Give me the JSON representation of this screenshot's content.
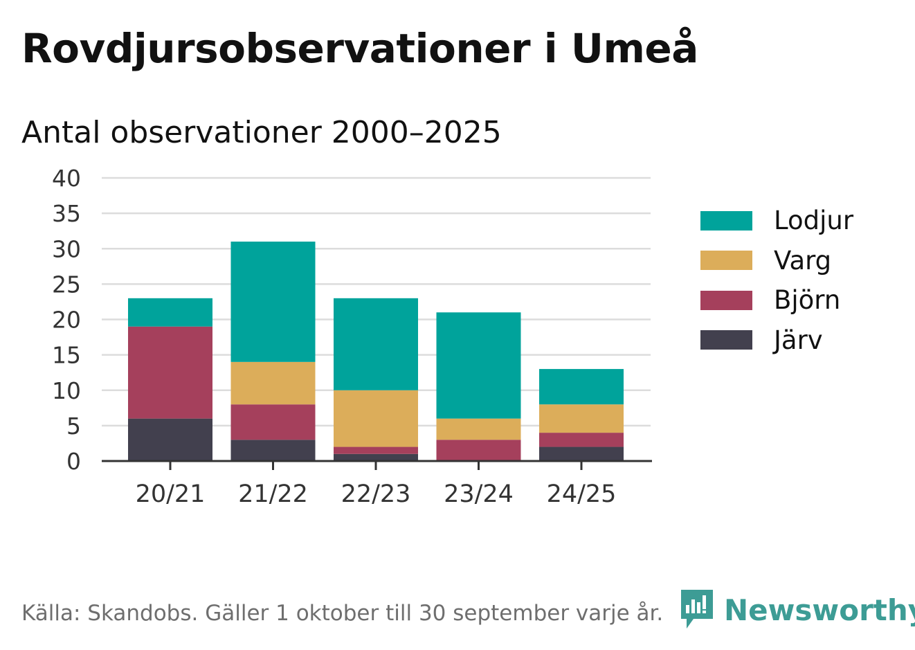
{
  "title": "Rovdjursobservationer i Umeå",
  "subtitle": "Antal observationer 2000–2025",
  "footer": "Källa: Skandobs. Gäller 1 oktober till 30 september varje år.",
  "brand": {
    "name": "Newsworthy",
    "icon": "newsworthy-logo-icon",
    "color": "#3d9c95"
  },
  "chart_data": {
    "type": "bar",
    "stacked": true,
    "categories": [
      "20/21",
      "21/22",
      "22/23",
      "23/24",
      "24/25"
    ],
    "series": [
      {
        "name": "Järv",
        "color": "#42404e",
        "values": [
          6,
          3,
          1,
          0,
          2
        ]
      },
      {
        "name": "Björn",
        "color": "#a5405c",
        "values": [
          13,
          5,
          1,
          3,
          2
        ]
      },
      {
        "name": "Varg",
        "color": "#dcad5a",
        "values": [
          0,
          6,
          8,
          3,
          4
        ]
      },
      {
        "name": "Lodjur",
        "color": "#00a39b",
        "values": [
          4,
          17,
          13,
          15,
          5
        ]
      }
    ],
    "legend_order": [
      "Lodjur",
      "Varg",
      "Björn",
      "Järv"
    ],
    "ylim": [
      0,
      40
    ],
    "yticks": [
      0,
      5,
      10,
      15,
      20,
      25,
      30,
      35,
      40
    ],
    "grid": true,
    "xlabel": "",
    "ylabel": "",
    "legend_position": "right"
  }
}
